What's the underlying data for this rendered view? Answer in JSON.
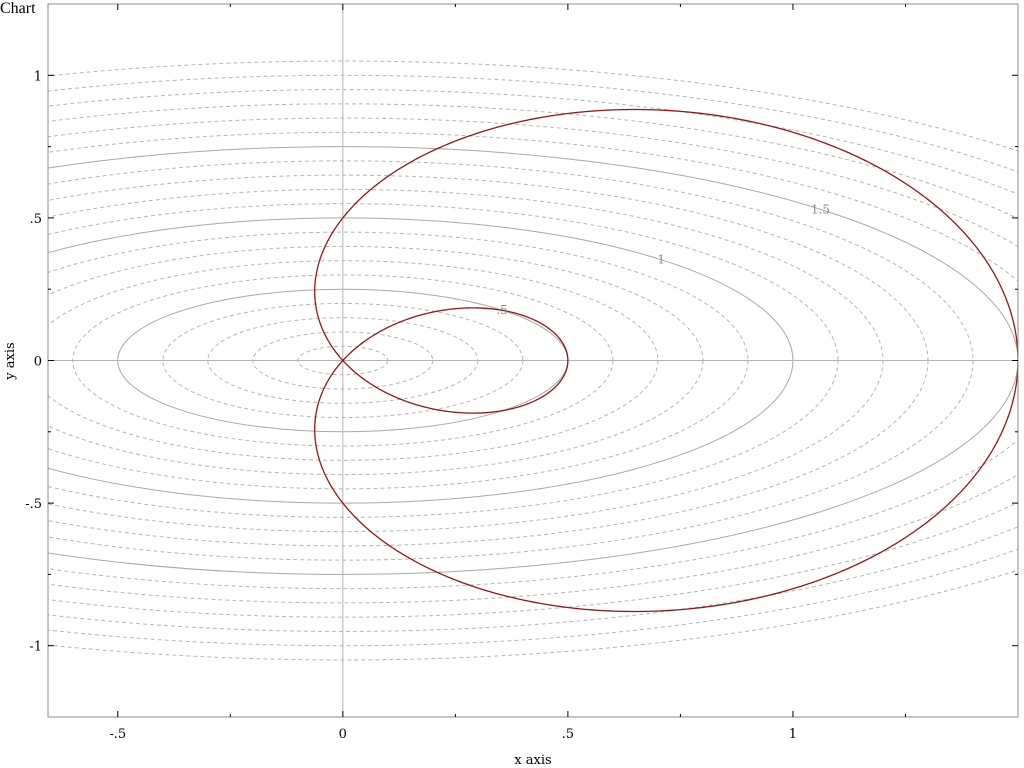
{
  "chart_data": {
    "type": "line",
    "title": "",
    "xlabel": "x axis",
    "ylabel": "y axis",
    "xlim": [
      -0.655,
      1.5
    ],
    "ylim": [
      -1.25,
      1.25
    ],
    "grid": false,
    "x_ticks": [
      {
        "value": -0.5,
        "label": "-.5"
      },
      {
        "value": 0,
        "label": "0"
      },
      {
        "value": 0.5,
        "label": ".5"
      },
      {
        "value": 1,
        "label": "1"
      }
    ],
    "y_ticks": [
      {
        "value": 1,
        "label": "1"
      },
      {
        "value": 0.5,
        "label": ".5"
      },
      {
        "value": 0,
        "label": "0"
      },
      {
        "value": -0.5,
        "label": "-.5"
      },
      {
        "value": -1,
        "label": "-1"
      }
    ],
    "contours": {
      "function": "sqrt(x^2 + 4*y^2)",
      "labeled_levels": [
        {
          "level": 0.5,
          "label": ".5"
        },
        {
          "level": 1.0,
          "label": "1"
        },
        {
          "level": 1.5,
          "label": "1.5"
        }
      ],
      "dashed_levels": [
        0.1,
        0.2,
        0.3,
        0.4,
        0.6,
        0.7,
        0.8,
        0.9,
        1.1,
        1.2,
        1.3,
        1.4,
        1.6,
        1.7,
        1.8,
        1.9,
        2.0,
        2.1
      ],
      "solid_color": "#a8a8a8",
      "dashed_color": "#b4b4bc"
    },
    "series": [
      {
        "type": "parametric-polar",
        "r": "1 + 2*cos(t)",
        "x": "r(t)*cos(t)/2",
        "y": "r(t)*sin(t)/2",
        "t_range": [
          0,
          6.2832
        ],
        "color": "#8b1a1a"
      }
    ],
    "axis_color": "#b4b4b4",
    "frame_color": "#8c8c8c"
  }
}
